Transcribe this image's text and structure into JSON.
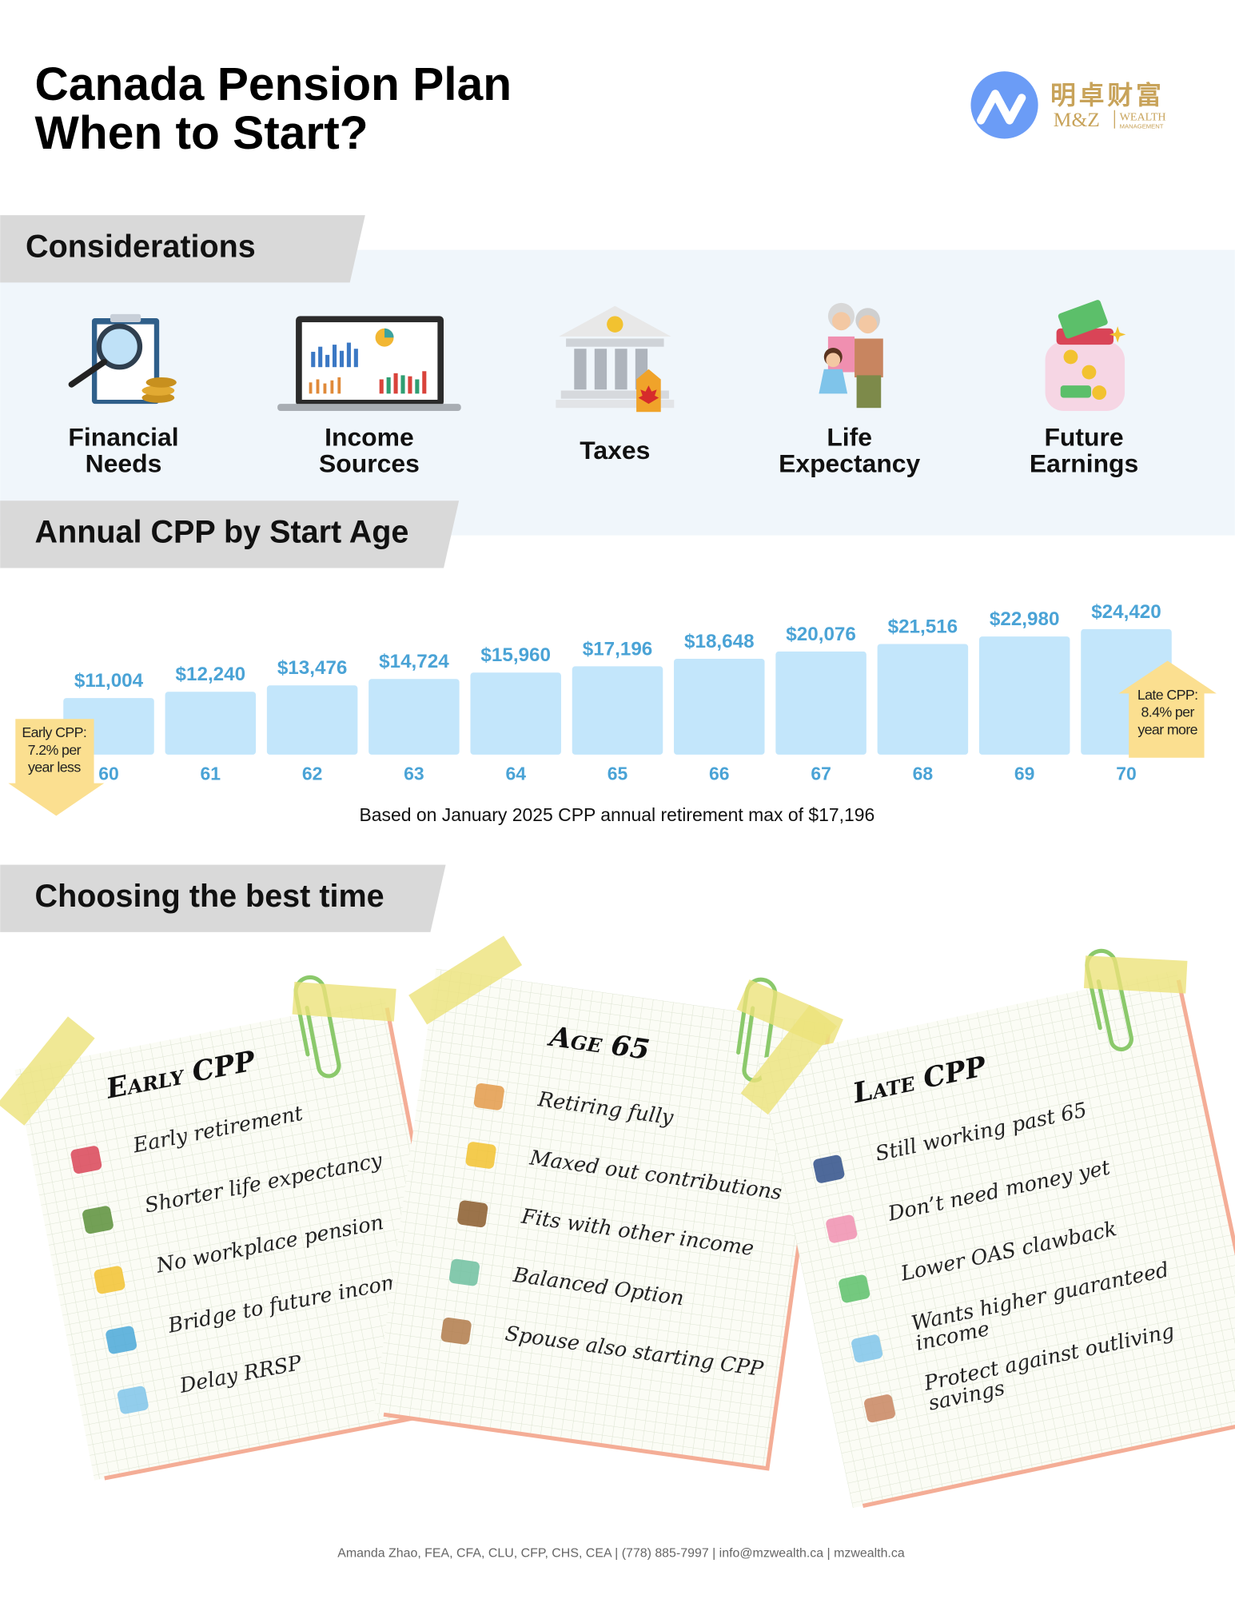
{
  "header": {
    "title_line1": "Canada Pension Plan",
    "title_line2": "When to Start?",
    "logo_chinese": "明卓财富",
    "logo_mz": "M&Z",
    "logo_wealth": "WEALTH",
    "logo_management": "MANAGEMENT"
  },
  "considerations": {
    "heading": "Considerations",
    "items": [
      [
        "Financial",
        "Needs"
      ],
      [
        "Income",
        "Sources"
      ],
      [
        "Taxes"
      ],
      [
        "Life",
        "Expectancy"
      ],
      [
        "Future",
        "Earnings"
      ]
    ]
  },
  "chart_data": {
    "type": "bar",
    "title": "Annual CPP by Start Age",
    "categories": [
      "60",
      "61",
      "62",
      "63",
      "64",
      "65",
      "66",
      "67",
      "68",
      "69",
      "70"
    ],
    "values": [
      11004,
      12240,
      13476,
      14724,
      15960,
      17196,
      18648,
      20076,
      21516,
      22980,
      24420
    ],
    "value_labels": [
      "$11,004",
      "$12,240",
      "$13,476",
      "$14,724",
      "$15,960",
      "$17,196",
      "$18,648",
      "$20,076",
      "$21,516",
      "$22,980",
      "$24,420"
    ],
    "color": "#c3e6fb",
    "ylim": [
      0,
      25000
    ],
    "note": "Based on January 2025 CPP annual retirement max of $17,196",
    "annotations": [
      [
        "Early CPP:",
        "7.2% per",
        "year less"
      ],
      [
        "Late CPP:",
        "8.4% per",
        "year more"
      ]
    ]
  },
  "choosing": {
    "heading": "Choosing the best time",
    "cards": [
      {
        "title": "Early CPP",
        "items": [
          [
            "Early retirement"
          ],
          [
            "Shorter life expectancy"
          ],
          [
            "No workplace pension"
          ],
          [
            "Bridge to future income"
          ],
          [
            "Delay RRSP"
          ]
        ]
      },
      {
        "title": "Age 65",
        "items": [
          [
            "Retiring fully"
          ],
          [
            "Maxed out contributions"
          ],
          [
            "Fits with other income"
          ],
          [
            "Balanced Option"
          ],
          [
            "Spouse also starting CPP"
          ]
        ]
      },
      {
        "title": "Late CPP",
        "items": [
          [
            "Still working past 65"
          ],
          [
            "Don’t need money yet"
          ],
          [
            "Lower OAS clawback"
          ],
          [
            "Wants higher guaranteed",
            "income"
          ],
          [
            "Protect against outliving",
            "savings"
          ]
        ]
      }
    ]
  },
  "footer": "Amanda Zhao, FEA, CFA, CLU, CFP, CHS, CEA | (778) 885-7997 | info@mzwealth.ca | mzwealth.ca"
}
